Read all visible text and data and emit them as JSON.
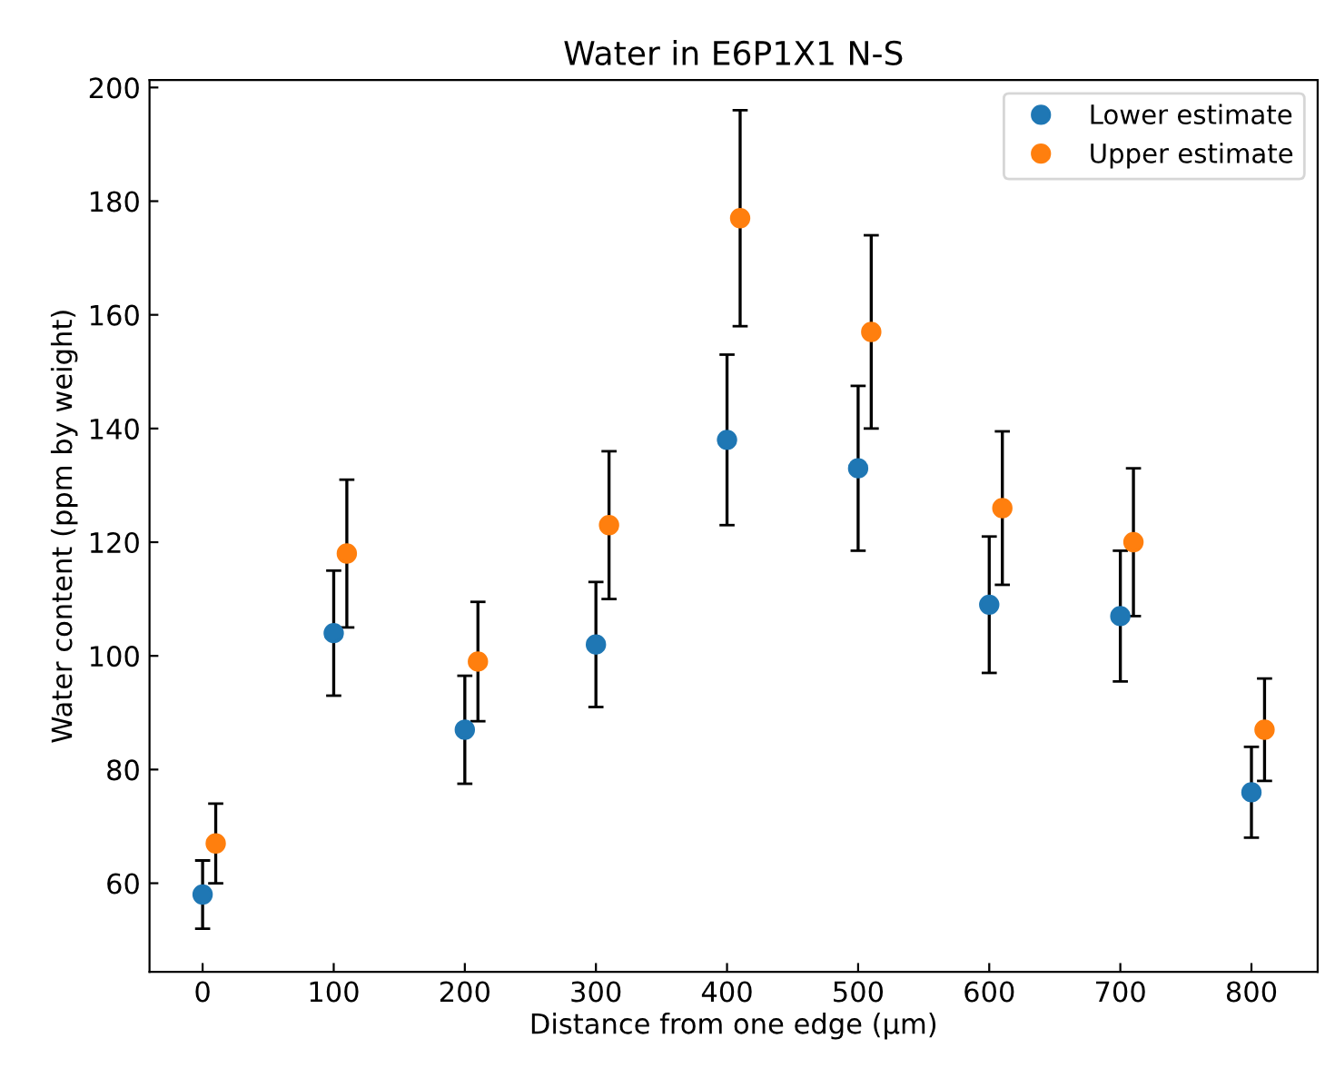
{
  "chart_data": {
    "type": "scatter",
    "title": "Water in E6P1X1 N-S",
    "xlabel": "Distance from one edge (µm)",
    "ylabel": "Water content (ppm by weight)",
    "series": [
      {
        "name": "Lower estimate",
        "color": "#1f77b4",
        "x": [
          0,
          100,
          200,
          300,
          400,
          500,
          600,
          700,
          800
        ],
        "values": [
          58,
          104,
          87,
          102,
          138,
          133,
          109,
          107,
          76
        ],
        "errors": [
          6,
          11,
          9.5,
          11,
          15,
          14.5,
          12,
          11.5,
          8
        ]
      },
      {
        "name": "Upper estimate",
        "color": "#ff7f0e",
        "x": [
          10,
          110,
          210,
          310,
          410,
          510,
          610,
          710,
          810
        ],
        "values": [
          67,
          118,
          99,
          123,
          177,
          157,
          126,
          120,
          87
        ],
        "errors": [
          7,
          13,
          10.5,
          13,
          19,
          17,
          13.5,
          13,
          9
        ]
      }
    ],
    "xlim": [
      -40.5,
      850.5
    ],
    "ylim": [
      44.4,
      201.3
    ],
    "xticks": [
      0,
      100,
      200,
      300,
      400,
      500,
      600,
      700,
      800
    ],
    "yticks": [
      60,
      80,
      100,
      120,
      140,
      160,
      180,
      200
    ],
    "marker": "circle",
    "legend": "top right",
    "grid": false
  }
}
